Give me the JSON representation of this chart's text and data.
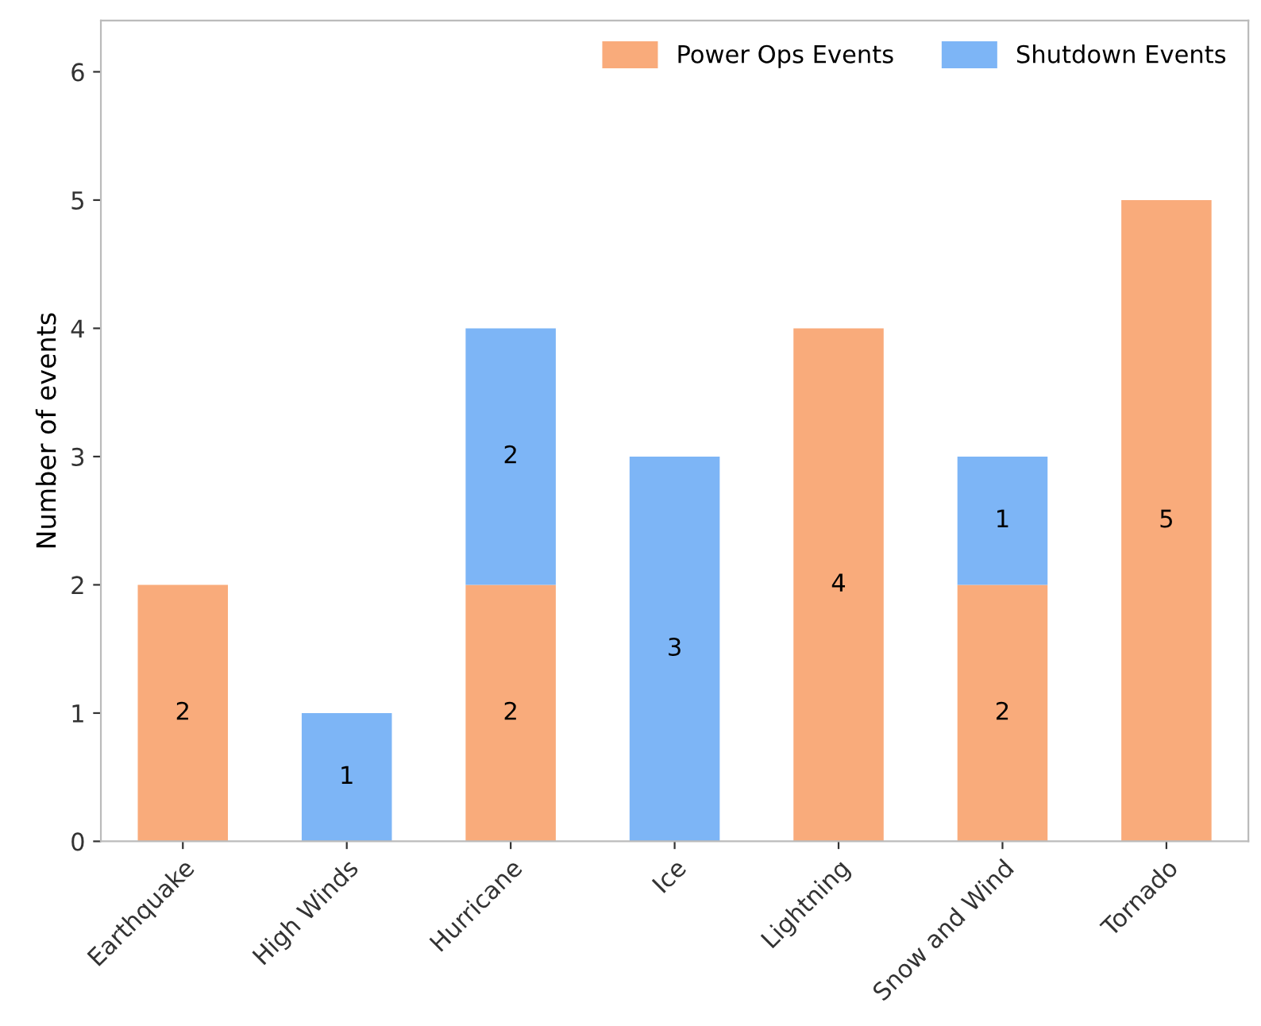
{
  "chart_data": {
    "type": "bar",
    "stacked": true,
    "ylabel": "Number of events",
    "categories": [
      "Earthquake",
      "High Winds",
      "Hurricane",
      "Ice",
      "Lightning",
      "Snow and Wind",
      "Tornado"
    ],
    "series": [
      {
        "name": "Power Ops Events",
        "color": "#f9ab7b",
        "values": [
          2,
          null,
          2,
          null,
          4,
          2,
          5
        ],
        "value_labels": [
          "2",
          null,
          "2",
          null,
          "4",
          "2",
          "5"
        ]
      },
      {
        "name": "Shutdown Events",
        "color": "#7db5f6",
        "values": [
          null,
          1,
          2,
          3,
          null,
          1,
          null
        ],
        "value_labels": [
          null,
          "1",
          "2",
          "3",
          null,
          "1",
          null
        ]
      }
    ],
    "ylim": [
      0,
      6.4
    ],
    "yticks": [
      0,
      1,
      2,
      3,
      4,
      5,
      6
    ],
    "grid": false,
    "legend": "top right"
  }
}
